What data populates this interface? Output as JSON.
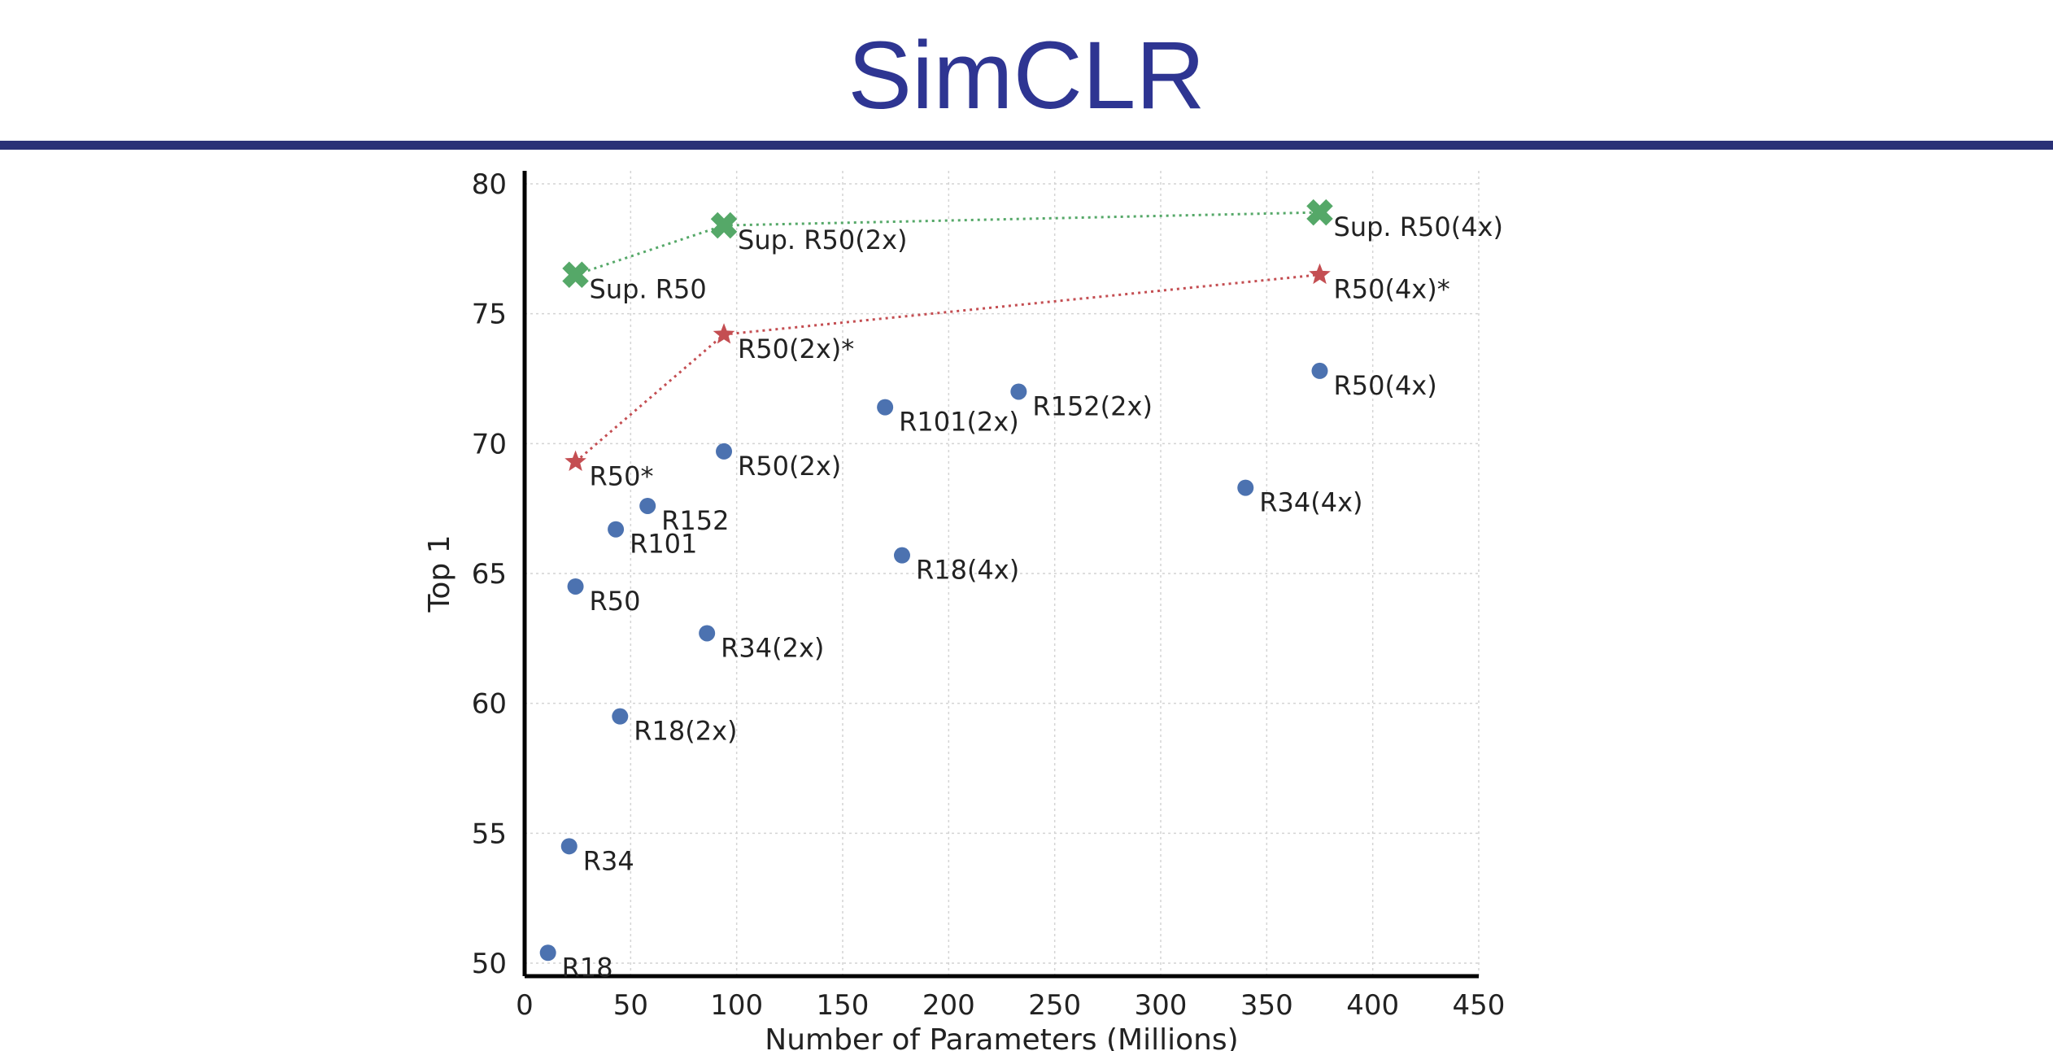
{
  "slide": {
    "title": "SimCLR",
    "title_color": "#2e3592",
    "rule_color": "#2a3177"
  },
  "chart_data": {
    "type": "scatter",
    "title": "",
    "xlabel": "Number of Parameters (Millions)",
    "ylabel": "Top 1",
    "xlim": [
      0,
      450
    ],
    "ylim": [
      49.5,
      80.5
    ],
    "xticks": [
      0,
      50,
      100,
      150,
      200,
      250,
      300,
      350,
      400,
      450
    ],
    "yticks": [
      50,
      55,
      60,
      65,
      70,
      75,
      80
    ],
    "grid": true,
    "legend": "none",
    "series": [
      {
        "marker": "circle",
        "color": "#4c72b0",
        "connected": false,
        "points": [
          {
            "label": "R18",
            "x": 11,
            "y": 50.4
          },
          {
            "label": "R34",
            "x": 21,
            "y": 54.5
          },
          {
            "label": "R50",
            "x": 24,
            "y": 64.5
          },
          {
            "label": "R101",
            "x": 43,
            "y": 66.7
          },
          {
            "label": "R152",
            "x": 58,
            "y": 67.6
          },
          {
            "label": "R18(2x)",
            "x": 45,
            "y": 59.5
          },
          {
            "label": "R34(2x)",
            "x": 86,
            "y": 62.7
          },
          {
            "label": "R50(2x)",
            "x": 94,
            "y": 69.7
          },
          {
            "label": "R101(2x)",
            "x": 170,
            "y": 71.4
          },
          {
            "label": "R152(2x)",
            "x": 233,
            "y": 72.0
          },
          {
            "label": "R18(4x)",
            "x": 178,
            "y": 65.7
          },
          {
            "label": "R34(4x)",
            "x": 340,
            "y": 68.3
          },
          {
            "label": "R50(4x)",
            "x": 375,
            "y": 72.8
          }
        ]
      },
      {
        "marker": "star",
        "color": "#c44e52",
        "connected": true,
        "points": [
          {
            "label": "R50*",
            "x": 24,
            "y": 69.3
          },
          {
            "label": "R50(2x)*",
            "x": 94,
            "y": 74.2
          },
          {
            "label": "R50(4x)*",
            "x": 375,
            "y": 76.5
          }
        ]
      },
      {
        "marker": "x",
        "color": "#55a868",
        "connected": true,
        "points": [
          {
            "label": "Sup. R50",
            "x": 24,
            "y": 76.5
          },
          {
            "label": "Sup. R50(2x)",
            "x": 94,
            "y": 78.4
          },
          {
            "label": "Sup. R50(4x)",
            "x": 375,
            "y": 78.9
          }
        ]
      }
    ]
  }
}
